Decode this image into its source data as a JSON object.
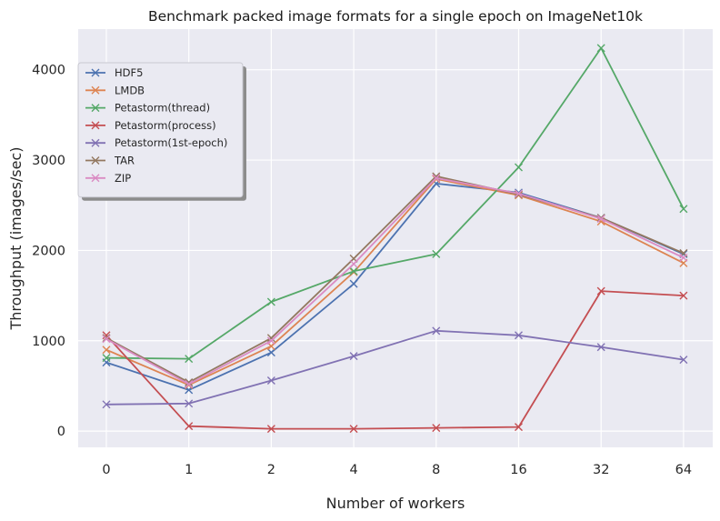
{
  "chart_data": {
    "type": "line",
    "title": "Benchmark packed image formats for a single epoch on ImageNet10k",
    "xlabel": "Number of workers",
    "ylabel": "Throughput (images/sec)",
    "categories": [
      "0",
      "1",
      "2",
      "4",
      "8",
      "16",
      "32",
      "64"
    ],
    "x_scale": "categorical",
    "ylim": [
      -180,
      4450
    ],
    "yticks": [
      0,
      1000,
      2000,
      3000,
      4000
    ],
    "grid": true,
    "marker": "x",
    "legend_position": "upper-left",
    "series": [
      {
        "name": "HDF5",
        "color": "#4c72b0",
        "values": [
          760,
          455,
          870,
          1630,
          2740,
          2640,
          2360,
          1960
        ]
      },
      {
        "name": "LMDB",
        "color": "#dd8452",
        "values": [
          900,
          510,
          940,
          1760,
          2790,
          2610,
          2320,
          1860
        ]
      },
      {
        "name": "Petastorm(thread)",
        "color": "#55a868",
        "values": [
          810,
          800,
          1430,
          1770,
          1960,
          2920,
          4240,
          2460
        ]
      },
      {
        "name": "Petastorm(process)",
        "color": "#c44e52",
        "values": [
          1060,
          55,
          25,
          25,
          35,
          45,
          1550,
          1500
        ]
      },
      {
        "name": "Petastorm(1st-epoch)",
        "color": "#8172b3",
        "values": [
          295,
          305,
          560,
          830,
          1110,
          1060,
          930,
          790
        ]
      },
      {
        "name": "TAR",
        "color": "#937860",
        "values": [
          1030,
          540,
          1030,
          1910,
          2820,
          2620,
          2360,
          1970
        ]
      },
      {
        "name": "ZIP",
        "color": "#da8bc3",
        "values": [
          1020,
          520,
          1000,
          1850,
          2800,
          2630,
          2350,
          1920
        ]
      }
    ]
  }
}
